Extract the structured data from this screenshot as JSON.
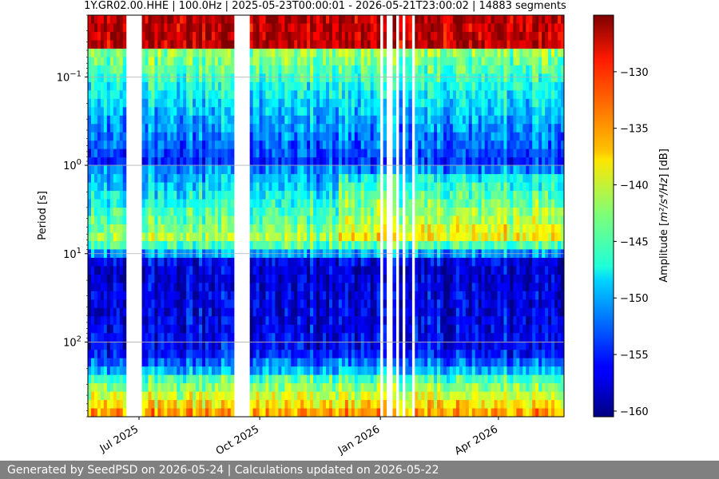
{
  "chart_data": {
    "type": "heatmap",
    "title": "1Y.GR02.00.HHE | 100.0Hz | 2025-05-23T00:00:01 - 2026-05-21T23:00:02 | 14883 segments",
    "ylabel": "Period [s]",
    "y_scale": "log",
    "y_inverted": true,
    "ylim": [
      0.02,
      700
    ],
    "y_ticks": [
      {
        "value": 0.1,
        "base": "10",
        "exp": "−1"
      },
      {
        "value": 1,
        "base": "10",
        "exp": "0"
      },
      {
        "value": 10,
        "base": "10",
        "exp": "1"
      },
      {
        "value": 100,
        "base": "10",
        "exp": "2"
      }
    ],
    "xlim": [
      "2025-05-23",
      "2026-05-21"
    ],
    "x_ticks": [
      {
        "date": "2025-07-01",
        "label": "Jul 2025"
      },
      {
        "date": "2025-10-01",
        "label": "Oct 2025"
      },
      {
        "date": "2026-01-01",
        "label": "Jan 2026"
      },
      {
        "date": "2026-04-01",
        "label": "Apr 2026"
      }
    ],
    "data_gaps": [
      [
        "2025-06-22",
        "2025-07-03"
      ],
      [
        "2025-09-11",
        "2025-09-23"
      ],
      [
        "2026-01-01",
        "2026-01-02"
      ],
      [
        "2026-01-05",
        "2026-01-11"
      ],
      [
        "2026-01-13",
        "2026-01-16"
      ],
      [
        "2026-01-18",
        "2026-01-21"
      ],
      [
        "2026-01-24",
        "2026-01-28"
      ]
    ],
    "colorbar": {
      "label_prefix": "Amplitude [",
      "label_suffix": "] [dB]",
      "label_unit": "m²/s⁴/Hz",
      "range": [
        -160.5,
        -125
      ],
      "ticks": [
        -130,
        -135,
        -140,
        -145,
        -150,
        -155,
        -160
      ],
      "tick_labels": [
        "−130",
        "−135",
        "−140",
        "−145",
        "−150",
        "−155",
        "−160"
      ],
      "colormap": "jet"
    },
    "grid": true
  },
  "footer": {
    "text": "Generated by SeedPSD on 2026-05-24 | Calculations updated on 2026-05-22"
  }
}
